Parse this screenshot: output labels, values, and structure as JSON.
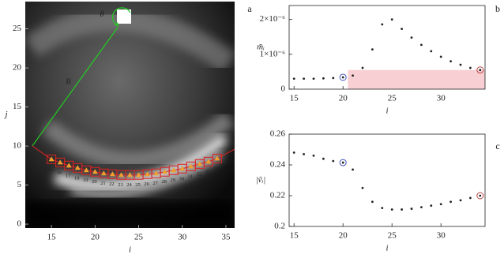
{
  "chart_data": [
    {
      "type": "image",
      "panel_label": "a",
      "xlabel": "i",
      "ylabel": "j",
      "xlim": [
        12,
        36
      ],
      "ylim": [
        -0.5,
        28.5
      ],
      "xticks": [
        15,
        20,
        25,
        30,
        35
      ],
      "yticks": [
        0,
        5,
        10,
        15,
        20,
        25
      ],
      "points": {
        "x": [
          15,
          16,
          17,
          18,
          19,
          20,
          21,
          22,
          23,
          24,
          25,
          26,
          27,
          28,
          29,
          30,
          31,
          32,
          33,
          34
        ],
        "y": [
          8.3,
          7.9,
          7.5,
          7.2,
          6.9,
          6.7,
          6.5,
          6.4,
          6.3,
          6.3,
          6.3,
          6.4,
          6.5,
          6.7,
          6.9,
          7.1,
          7.4,
          7.7,
          8.0,
          8.4
        ]
      },
      "center": [
        22.6,
        25.2
      ],
      "arc_start": [
        12.8,
        10.0
      ],
      "arc_end": [
        36,
        9.6
      ],
      "radius_label": "R",
      "angle_label": "θ",
      "box_color": "#dd2222",
      "marker_color": "#f0a030",
      "radius_color": "#22cc22",
      "arc_color": "#dd2222"
    },
    {
      "type": "scatter",
      "panel_label": "b",
      "xlabel": "i",
      "ylabel": "m̃ᵢ",
      "xlim": [
        14.5,
        34.5
      ],
      "ylim": [
        0,
        2.4e-06
      ],
      "xticks": [
        15,
        20,
        25,
        30
      ],
      "yticks": [
        0,
        {
          "value": 1e-06,
          "label": "1×10⁻⁶"
        },
        {
          "value": 2e-06,
          "label": "2×10⁻⁶"
        }
      ],
      "x": [
        15,
        16,
        17,
        18,
        19,
        20,
        21,
        22,
        23,
        24,
        25,
        26,
        27,
        28,
        29,
        30,
        31,
        32,
        33,
        34
      ],
      "series": [
        {
          "color": "#222222",
          "values": [
            3e-07,
            3e-07,
            3e-07,
            3.1e-07,
            3.2e-07,
            3.4e-07,
            3.9e-07,
            6.1e-07,
            1.14e-06,
            1.86e-06,
            2e-06,
            1.73e-06,
            1.48e-06,
            1.27e-06,
            1.09e-06,
            9.3e-07,
            8e-07,
            7e-07,
            6.1e-07,
            5.5e-07
          ]
        }
      ],
      "highlights": [
        {
          "index": 5,
          "color": "#4455bb"
        },
        {
          "index": 19,
          "color": "#bb4444"
        }
      ],
      "shaded_region": {
        "xlim": [
          20.5,
          34.5
        ],
        "ylim": [
          0,
          5.5e-07
        ],
        "color": "#f8d0d4"
      }
    },
    {
      "type": "scatter",
      "panel_label": "c",
      "xlabel": "i",
      "ylabel": "|ṽᵢ|",
      "xlim": [
        14.5,
        34.5
      ],
      "ylim": [
        0.2,
        0.26
      ],
      "xticks": [
        15,
        20,
        25,
        30
      ],
      "yticks": [
        0.2,
        0.22,
        0.24,
        0.26
      ],
      "x": [
        15,
        16,
        17,
        18,
        19,
        20,
        21,
        22,
        23,
        24,
        25,
        26,
        27,
        28,
        29,
        30,
        31,
        32,
        33,
        34
      ],
      "series": [
        {
          "color": "#222222",
          "values": [
            0.248,
            0.247,
            0.246,
            0.244,
            0.2425,
            0.2415,
            0.237,
            0.225,
            0.216,
            0.212,
            0.211,
            0.211,
            0.2115,
            0.2125,
            0.2135,
            0.2145,
            0.216,
            0.217,
            0.2185,
            0.22
          ]
        }
      ],
      "highlights": [
        {
          "index": 5,
          "color": "#4455bb"
        },
        {
          "index": 19,
          "color": "#bb4444"
        }
      ]
    }
  ]
}
